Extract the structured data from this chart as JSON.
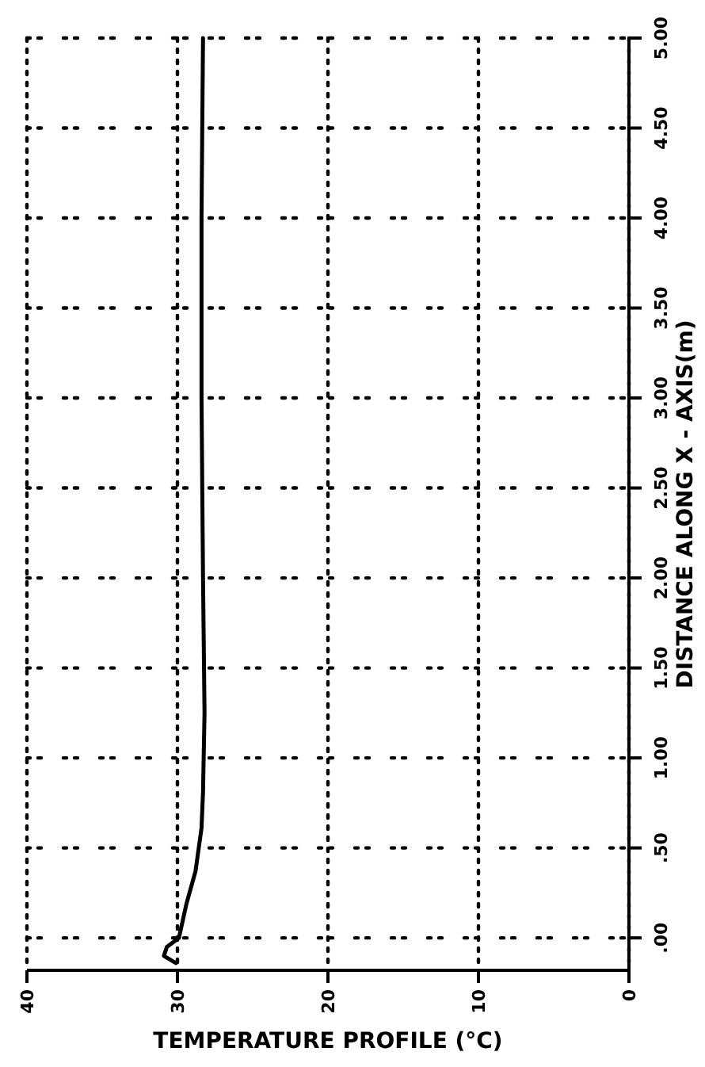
{
  "chart_data": {
    "type": "line",
    "xlabel": "TEMPERATURE PROFILE (°C)",
    "ylabel": "DISTANCE ALONG X - AXIS(m)",
    "xlim": [
      40,
      0
    ],
    "xticks": [
      40,
      30,
      20,
      10,
      0
    ],
    "ylim": [
      -0.18,
      5
    ],
    "yticks": [
      {
        "value": 0,
        "label": ".00"
      },
      {
        "value": 0.5,
        "label": ".50"
      },
      {
        "value": 1,
        "label": "1.00"
      },
      {
        "value": 1.5,
        "label": "1.50"
      },
      {
        "value": 2,
        "label": "2.00"
      },
      {
        "value": 2.5,
        "label": "2.50"
      },
      {
        "value": 3,
        "label": "3.00"
      },
      {
        "value": 3.5,
        "label": "3.50"
      },
      {
        "value": 4,
        "label": "4.00"
      },
      {
        "value": 4.5,
        "label": "4.50"
      },
      {
        "value": 5,
        "label": "5.00"
      }
    ],
    "grid": true,
    "marker": "none",
    "line_style": "solid",
    "series": [
      {
        "color": "#000000",
        "x": [
          30.1,
          30.9,
          30.7,
          29.9,
          29.4,
          28.8,
          28.4,
          28.3,
          28.2,
          28.3,
          28.4,
          28.4,
          28.3
        ],
        "values": [
          -0.14,
          -0.1,
          -0.05,
          0.0,
          0.19,
          0.37,
          0.61,
          0.81,
          1.25,
          2.0,
          3.0,
          4.0,
          5.0
        ]
      }
    ]
  }
}
